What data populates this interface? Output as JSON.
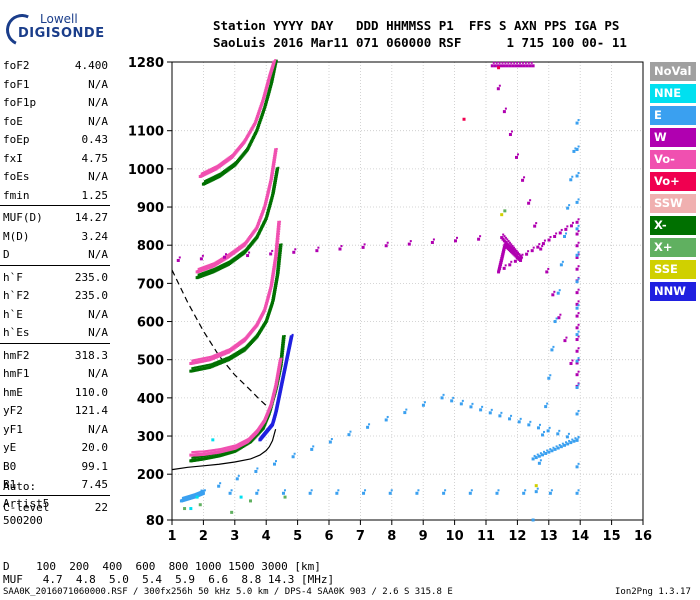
{
  "logo": {
    "line1": "Lowell",
    "line2": "DIGISONDE"
  },
  "header": {
    "row1": "Station YYYY DAY   DDD HHMMSS P1  FFS S AXN PPS IGA PS",
    "row2": "SaoLuis 2016 Mar11 071 060000 RSF      1 715 100 00- 11"
  },
  "params": [
    {
      "name": "foF2",
      "value": "4.400"
    },
    {
      "name": "foF1",
      "value": "N/A"
    },
    {
      "name": "foF1p",
      "value": "N/A"
    },
    {
      "name": "foE",
      "value": "N/A"
    },
    {
      "name": "foEp",
      "value": "0.43"
    },
    {
      "name": "fxI",
      "value": "4.75"
    },
    {
      "name": "foEs",
      "value": "N/A"
    },
    {
      "name": "fmin",
      "value": "1.25"
    },
    {
      "name": "MUF(D)",
      "value": "14.27"
    },
    {
      "name": "M(D)",
      "value": "3.24"
    },
    {
      "name": "D",
      "value": "N/A"
    },
    {
      "name": "h`F",
      "value": "235.0"
    },
    {
      "name": "h`F2",
      "value": "235.0"
    },
    {
      "name": "h`E",
      "value": "N/A"
    },
    {
      "name": "h`Es",
      "value": "N/A"
    },
    {
      "name": "hmF2",
      "value": "318.3"
    },
    {
      "name": "hmF1",
      "value": "N/A"
    },
    {
      "name": "hmE",
      "value": "110.0"
    },
    {
      "name": "yF2",
      "value": "121.4"
    },
    {
      "name": "yF1",
      "value": "N/A"
    },
    {
      "name": "yE",
      "value": "20.0"
    },
    {
      "name": "B0",
      "value": "99.1"
    },
    {
      "name": "B1",
      "value": "7.45"
    },
    {
      "name": "C-level",
      "value": "22"
    }
  ],
  "autoscale": {
    "line1": "Auto:",
    "line2": "Artist5",
    "line3": "500200"
  },
  "legend": [
    {
      "label": "NoVal",
      "color": "#a0a0a0"
    },
    {
      "label": "NNE",
      "color": "#00e0f0"
    },
    {
      "label": "E",
      "color": "#3aa0f0"
    },
    {
      "label": "W",
      "color": "#b000b0"
    },
    {
      "label": "Vo-",
      "color": "#f050b0"
    },
    {
      "label": "Vo+",
      "color": "#f00050"
    },
    {
      "label": "SSW",
      "color": "#f0b0b0"
    },
    {
      "label": "X-",
      "color": "#007000"
    },
    {
      "label": "X+",
      "color": "#60b060"
    },
    {
      "label": "SSE",
      "color": "#d0d000"
    },
    {
      "label": "NNW",
      "color": "#2020e0"
    }
  ],
  "muf_table": {
    "row1": "D    100  200  400  600  800 1000 1500 3000 [km]",
    "row2": "MUF   4.7  4.8  5.0  5.4  5.9  6.6  8.8 14.3 [MHz]"
  },
  "footer": {
    "left": "SAA0K_2016071060000.RSF / 300fx256h 50 kHz 5.0 km / DPS-4 SAA0K 903 / 2.6 S 315.8 E",
    "right": "Ion2Png 1.3.17"
  },
  "chart_data": {
    "type": "scatter",
    "xlabel": "",
    "ylabel": "",
    "xlim": [
      1,
      16
    ],
    "ylim": [
      80,
      1280
    ],
    "xticks": [
      1,
      2,
      3,
      4,
      5,
      6,
      7,
      8,
      9,
      10,
      11,
      12,
      13,
      14,
      15,
      16
    ],
    "yticks": [
      80,
      200,
      300,
      400,
      500,
      600,
      700,
      800,
      900,
      1000,
      1100,
      1280
    ],
    "grid": true,
    "legend_position": "right",
    "series": [
      {
        "name": "X-",
        "color": "#007000",
        "x": [
          1.6,
          2.0,
          2.5,
          3.0,
          3.5,
          3.9,
          4.1,
          4.3,
          4.45,
          4.55
        ],
        "y": [
          235,
          240,
          248,
          260,
          285,
          320,
          360,
          420,
          480,
          560
        ]
      },
      {
        "name": "Vo-",
        "color": "#f050b0",
        "x": [
          1.6,
          2.0,
          2.5,
          3.0,
          3.4,
          3.7,
          3.95,
          4.15,
          4.3,
          4.45
        ],
        "y": [
          250,
          252,
          258,
          268,
          285,
          310,
          340,
          380,
          430,
          500
        ]
      },
      {
        "name": "NNW",
        "color": "#2020e0",
        "x": [
          3.8,
          4.0,
          4.2,
          4.3,
          4.4,
          4.5,
          4.6,
          4.7,
          4.8
        ],
        "y": [
          290,
          310,
          330,
          360,
          400,
          440,
          480,
          520,
          560
        ]
      },
      {
        "name": "X-",
        "color": "#007000",
        "x": [
          1.6,
          2.2,
          2.8,
          3.3,
          3.7,
          4.0,
          4.2,
          4.35,
          4.45
        ],
        "y": [
          470,
          480,
          500,
          525,
          560,
          600,
          650,
          720,
          800
        ]
      },
      {
        "name": "Vo-",
        "color": "#f050b0",
        "x": [
          1.6,
          2.2,
          2.8,
          3.3,
          3.7,
          3.95,
          4.15,
          4.3,
          4.4
        ],
        "y": [
          490,
          500,
          520,
          550,
          590,
          630,
          690,
          770,
          860
        ]
      },
      {
        "name": "X-",
        "color": "#007000",
        "x": [
          1.8,
          2.3,
          2.8,
          3.3,
          3.7,
          4.0,
          4.2,
          4.35
        ],
        "y": [
          715,
          730,
          750,
          780,
          820,
          870,
          930,
          1000
        ]
      },
      {
        "name": "Vo-",
        "color": "#f050b0",
        "x": [
          1.8,
          2.3,
          2.8,
          3.3,
          3.7,
          3.95,
          4.15,
          4.3
        ],
        "y": [
          730,
          745,
          770,
          800,
          845,
          900,
          970,
          1050
        ]
      },
      {
        "name": "X-",
        "color": "#007000",
        "x": [
          2.0,
          2.5,
          3.0,
          3.4,
          3.7,
          3.95,
          4.15,
          4.3
        ],
        "y": [
          960,
          980,
          1010,
          1050,
          1100,
          1160,
          1220,
          1280
        ]
      },
      {
        "name": "Vo-",
        "color": "#f050b0",
        "x": [
          1.9,
          2.4,
          2.9,
          3.3,
          3.65,
          3.9,
          4.1,
          4.25
        ],
        "y": [
          980,
          1000,
          1030,
          1070,
          1120,
          1180,
          1240,
          1280
        ]
      },
      {
        "name": "W",
        "color": "#b000b0",
        "x": [
          1.2,
          11.5,
          12.1,
          11.6,
          11.4,
          13.9,
          13.9,
          11.2,
          12.5
        ],
        "y": [
          760,
          820,
          760,
          800,
          730,
          860,
          430,
          1270,
          1270
        ]
      },
      {
        "name": "E",
        "color": "#3aa0f0",
        "x": [
          12.5,
          13.9,
          9.6,
          1.3,
          1.7,
          2.0,
          13.9,
          13.9,
          12.5
        ],
        "y": [
          240,
          290,
          400,
          130,
          140,
          150,
          150,
          1120,
          80
        ]
      },
      {
        "name": "NNE",
        "color": "#00e0f0",
        "x": [
          3.2,
          2.3,
          1.6,
          1.8
        ],
        "y": [
          140,
          290,
          110,
          140
        ]
      },
      {
        "name": "X+",
        "color": "#60b060",
        "x": [
          1.4,
          1.9,
          2.9,
          3.5,
          4.6,
          11.6
        ],
        "y": [
          110,
          120,
          100,
          130,
          140,
          890
        ]
      },
      {
        "name": "SSE",
        "color": "#d0d000",
        "x": [
          11.5,
          12.6
        ],
        "y": [
          880,
          170
        ]
      },
      {
        "name": "Vo+",
        "color": "#f00050",
        "x": [
          10.3,
          11.4
        ],
        "y": [
          1130,
          1265
        ]
      }
    ],
    "curves": [
      {
        "name": "profile",
        "style": "solid",
        "x": [
          1.0,
          1.5,
          2.0,
          2.5,
          3.0,
          3.5,
          3.8,
          4.0,
          4.1,
          4.2,
          4.25,
          4.3
        ],
        "y": [
          212,
          218,
          222,
          226,
          232,
          240,
          250,
          262,
          272,
          288,
          303,
          318
        ]
      },
      {
        "name": "trace",
        "style": "dashed",
        "x": [
          1.0,
          1.5,
          2.0,
          2.5,
          3.0,
          3.5,
          3.8,
          4.0,
          4.1
        ],
        "y": [
          735,
          650,
          575,
          510,
          460,
          420,
          395,
          380,
          370
        ]
      }
    ]
  }
}
